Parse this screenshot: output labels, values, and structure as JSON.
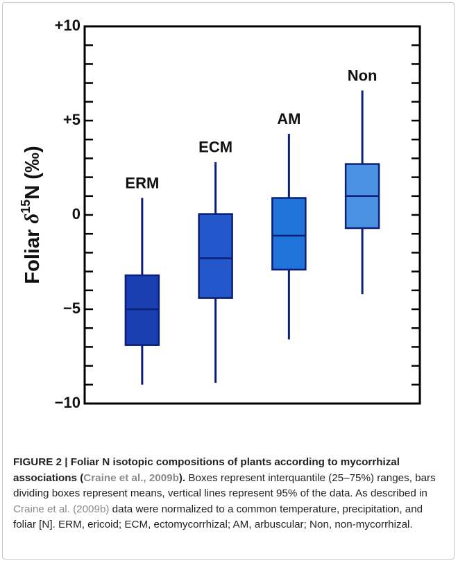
{
  "chart_data": {
    "type": "box",
    "ylabel": "Foliar δ15N (‰)",
    "categories": [
      "ERM",
      "ECM",
      "AM",
      "Non"
    ],
    "colors": [
      "#1a3fb0",
      "#2457c9",
      "#1f73d9",
      "#4b92e2"
    ],
    "whisker_low": [
      -9.0,
      -8.9,
      -6.6,
      -4.2
    ],
    "q1": [
      -6.9,
      -4.4,
      -2.9,
      -0.7
    ],
    "median": [
      -5.0,
      -2.3,
      -1.1,
      1.0
    ],
    "q3": [
      -3.2,
      0.05,
      0.9,
      2.7
    ],
    "whisker_high": [
      0.9,
      2.8,
      4.3,
      6.6
    ],
    "ylim": [
      -10,
      10
    ],
    "yticks": [
      {
        "value": -10,
        "label": "−10"
      },
      {
        "value": -5,
        "label": "−5"
      },
      0,
      {
        "value": 5,
        "label": "+5"
      },
      {
        "value": 10,
        "label": "+10"
      }
    ],
    "minor_yticks": [
      -9,
      -8,
      -7,
      -6,
      -4,
      -3,
      -2,
      -1,
      1,
      2,
      3,
      4,
      6,
      7,
      8,
      9
    ]
  },
  "caption": [
    "FIGURE 2 | Foliar N isotopic compositions of plants according to mycorrhizal associations (",
    "Craine et al., 2009b",
    ").",
    " Boxes represent interquantile (25–75%) ranges, bars dividing boxes represent means, vertical lines represent 95% of the data. As described in ",
    "Craine et al. (2009b)",
    " data were normalized to a common temperature, precipitation, and foliar [N]. ERM, ericoid; ECM, ectomycorrhizal; AM, arbuscular; Non, non-mycorrhizal."
  ]
}
